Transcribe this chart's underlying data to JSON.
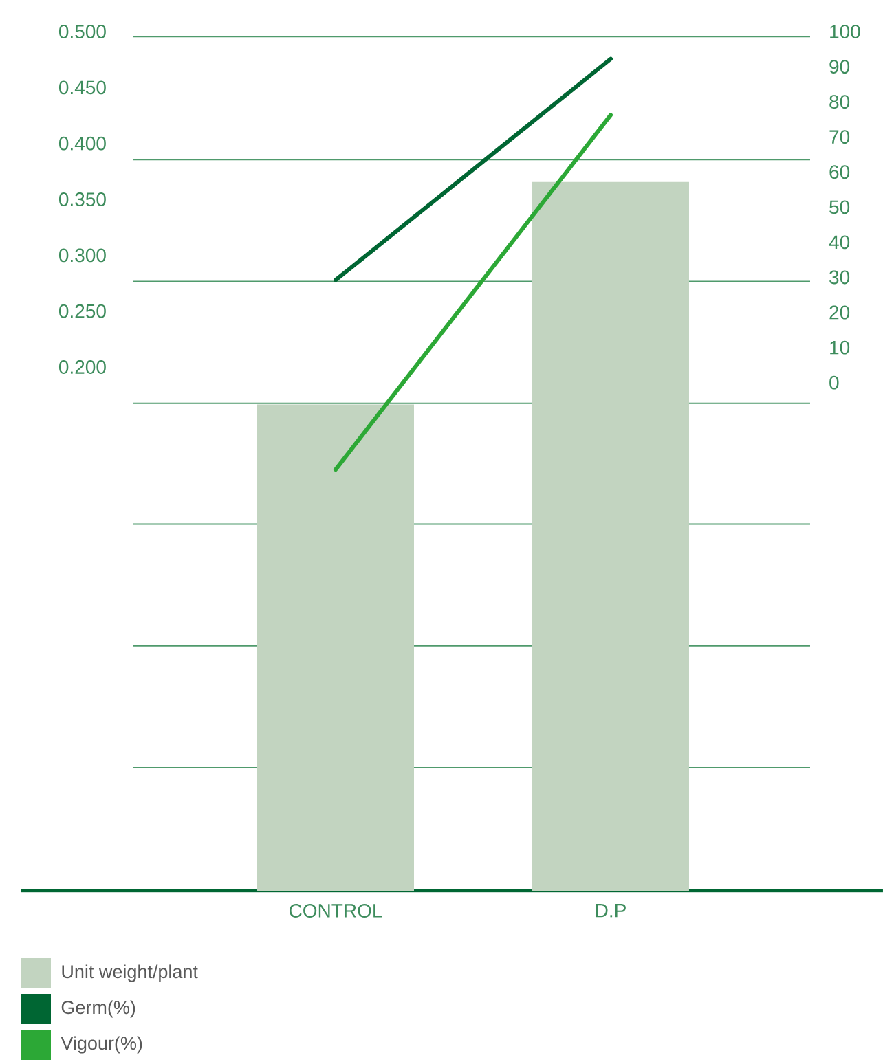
{
  "chart_data": {
    "type": "bar",
    "categories": [
      "CONTROL",
      "D.P"
    ],
    "series": [
      {
        "name": "Unit weight/plant",
        "color": "#c2d4c0",
        "base": [
          -0.266,
          -0.266
        ],
        "values": [
          0.435,
          0.634
        ]
      },
      {
        "name": "Germ(%)",
        "type": "line",
        "axis": "y2",
        "color": "#006633",
        "values": [
          30,
          93
        ]
      },
      {
        "name": "Vigour(%)",
        "type": "line",
        "axis": "y2",
        "color": "#2ca836",
        "values": [
          -24,
          77
        ]
      }
    ],
    "ylim": [
      -0.266,
      0.5
    ],
    "yticks": [
      {
        "value": 0.2,
        "label": "0.200"
      },
      {
        "value": 0.25,
        "label": "0.250"
      },
      {
        "value": 0.3,
        "label": "0.300"
      },
      {
        "value": 0.35,
        "label": "0.350"
      },
      {
        "value": 0.4,
        "label": "0.400"
      },
      {
        "value": 0.45,
        "label": "0.450"
      },
      {
        "value": 0.5,
        "label": "0.500"
      }
    ],
    "y2lim": [
      -144,
      100
    ],
    "y2ticks": [
      0,
      10,
      20,
      30,
      40,
      50,
      60,
      70,
      80,
      90,
      100
    ],
    "ref_lines": [
      {
        "axis": "y",
        "value": 0.498,
        "color": "#4f9a6c"
      },
      {
        "axis": "y",
        "value": 0.388,
        "color": "#4f9a6c"
      },
      {
        "axis": "y",
        "value": 0.279,
        "color": "#4f9a6c"
      },
      {
        "axis": "y",
        "value": 0.17,
        "color": "#4f9a6c"
      },
      {
        "axis": "y",
        "value": 0.062,
        "color": "#4f9a6c"
      },
      {
        "axis": "y",
        "value": -0.047,
        "color": "#4f9a6c"
      },
      {
        "axis": "y",
        "value": -0.156,
        "color": "#4f9a6c"
      }
    ],
    "legend": "bottom left",
    "line_style": "solid",
    "marker": "none"
  }
}
